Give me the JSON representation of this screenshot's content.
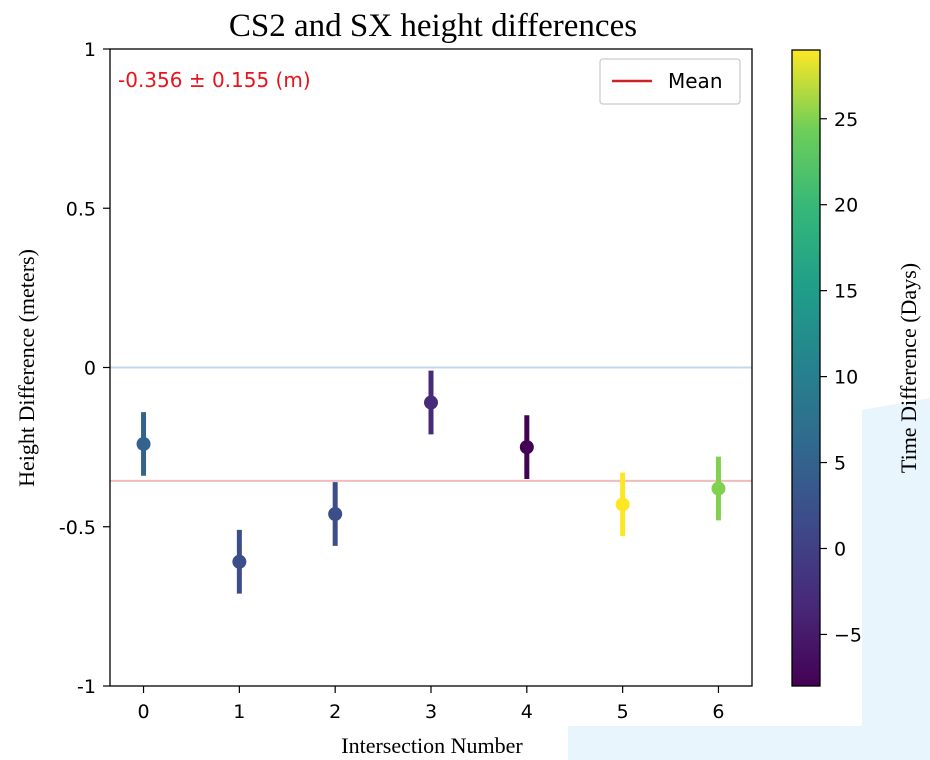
{
  "chart_data": {
    "type": "scatter",
    "title": "CS2 and SX height differences",
    "xlabel": "Intersection Number",
    "ylabel": "Height Difference (meters)",
    "xlim": [
      -0.35,
      6.35
    ],
    "ylim": [
      -1,
      1
    ],
    "x_ticks": [
      0,
      1,
      2,
      3,
      4,
      5,
      6
    ],
    "y_ticks": [
      {
        "value": 1,
        "label": "1"
      },
      {
        "value": 0.5,
        "label": "0.5"
      },
      {
        "value": 0,
        "label": "0"
      },
      {
        "value": -0.5,
        "label": "-0.5"
      },
      {
        "value": -1,
        "label": "-1"
      }
    ],
    "points": [
      {
        "x": 0,
        "y": -0.24,
        "err": 0.1,
        "time_diff": 5
      },
      {
        "x": 1,
        "y": -0.61,
        "err": 0.1,
        "time_diff": 2
      },
      {
        "x": 2,
        "y": -0.46,
        "err": 0.1,
        "time_diff": 2
      },
      {
        "x": 3,
        "y": -0.11,
        "err": 0.1,
        "time_diff": -3
      },
      {
        "x": 4,
        "y": -0.25,
        "err": 0.1,
        "time_diff": -8
      },
      {
        "x": 5,
        "y": -0.43,
        "err": 0.1,
        "time_diff": 29
      },
      {
        "x": 6,
        "y": -0.38,
        "err": 0.1,
        "time_diff": 25
      }
    ],
    "zero_line": {
      "y": 0,
      "color": "#c5d7ec"
    },
    "mean_line": {
      "y": -0.356,
      "color": "#cc2222",
      "label": "Mean"
    },
    "annotation": {
      "text": "-0.356 ± 0.155 (m)",
      "color": "#e8141b"
    },
    "legend": {
      "position": "top-right",
      "entries": [
        "Mean"
      ]
    },
    "colorbar": {
      "label": "Time Difference (Days)",
      "min": -8,
      "max": 29,
      "ticks": [
        {
          "value": 25,
          "label": "25"
        },
        {
          "value": 20,
          "label": "20"
        },
        {
          "value": 15,
          "label": "15"
        },
        {
          "value": 10,
          "label": "10"
        },
        {
          "value": 5,
          "label": "5"
        },
        {
          "value": 0,
          "label": "0"
        },
        {
          "value": -5,
          "label": "−5"
        }
      ],
      "colormap": "viridis"
    },
    "grid": false
  }
}
